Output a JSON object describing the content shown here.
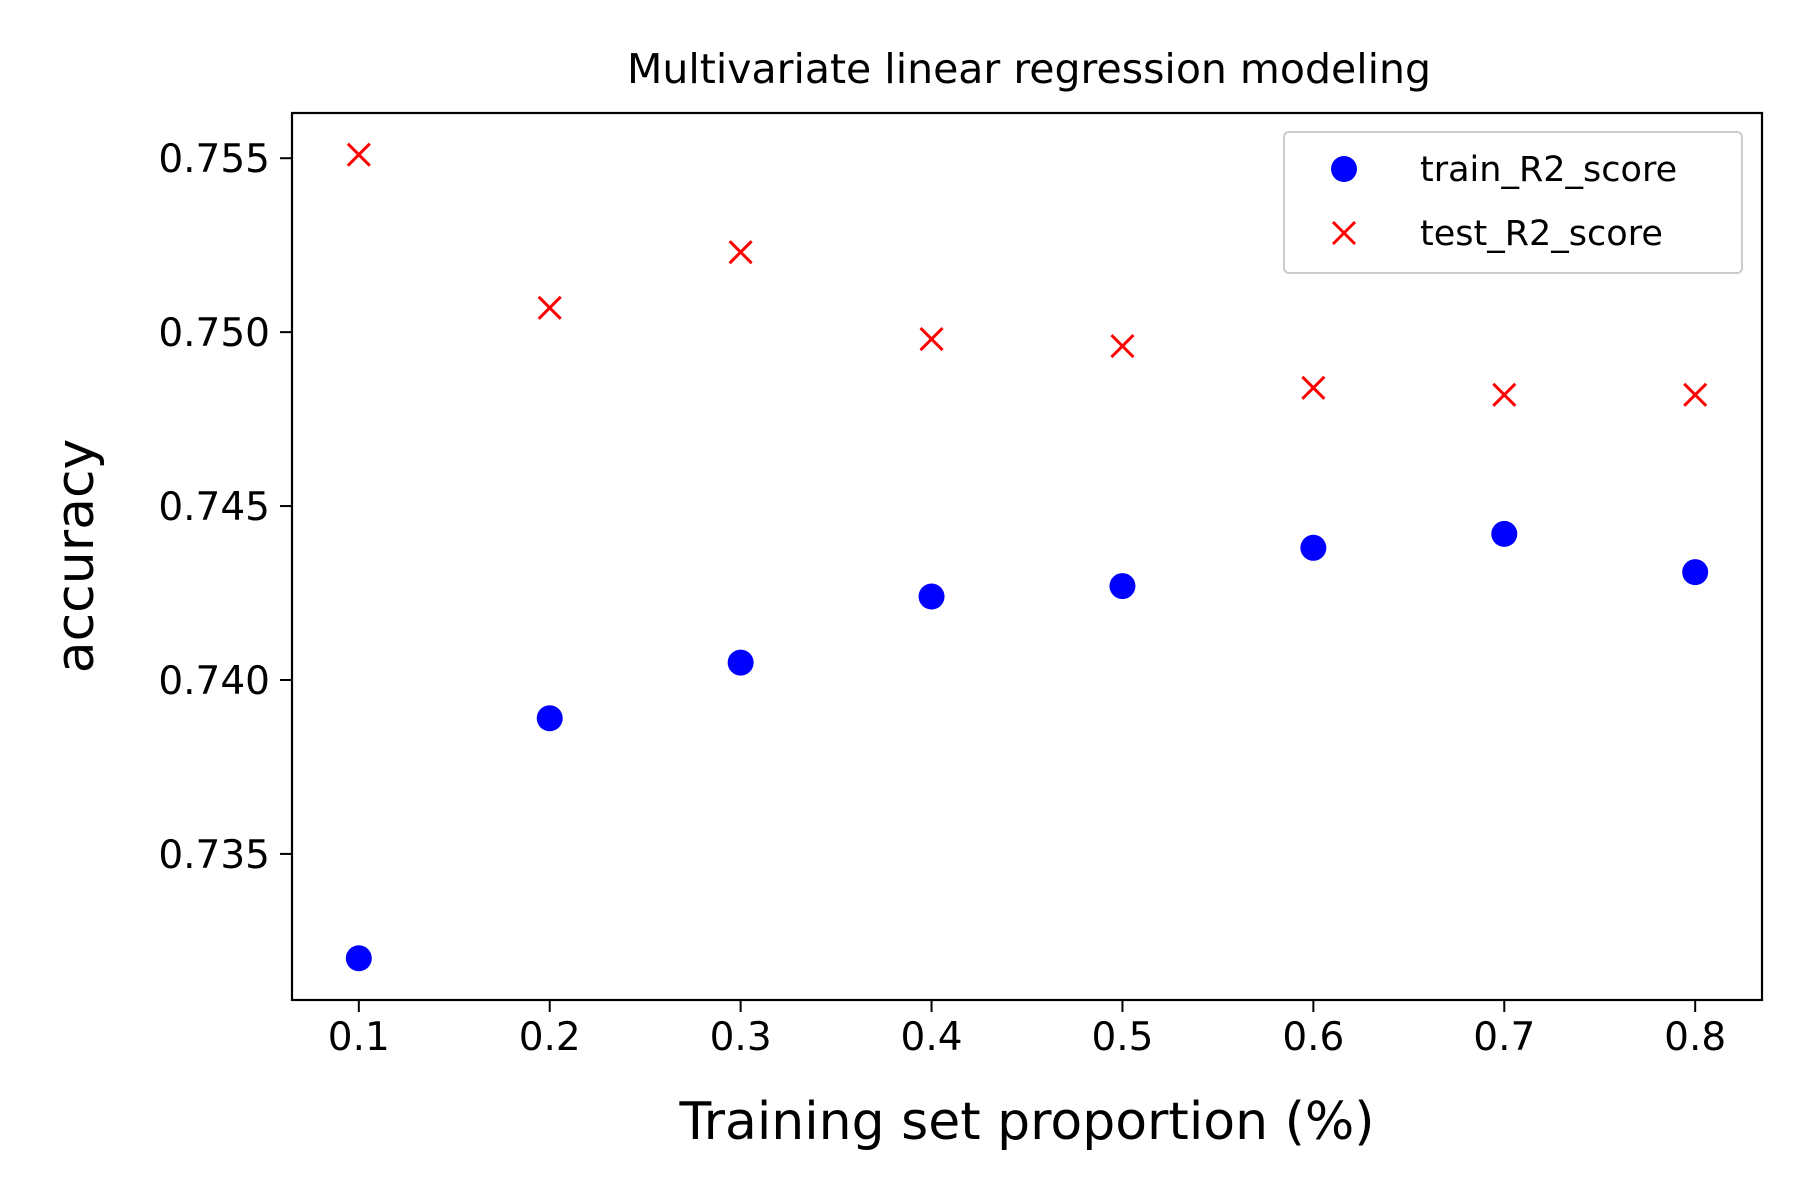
{
  "chart_data": {
    "type": "scatter",
    "title": "Multivariate linear regression modeling",
    "xlabel": "Training set proportion (%)",
    "ylabel": "accuracy",
    "x": [
      0.1,
      0.2,
      0.3,
      0.4,
      0.5,
      0.6,
      0.7,
      0.8
    ],
    "xlim": [
      0.065,
      0.835
    ],
    "ylim": [
      0.7308,
      0.7563
    ],
    "xticks": [
      0.1,
      0.2,
      0.3,
      0.4,
      0.5,
      0.6,
      0.7,
      0.8
    ],
    "xtick_labels": [
      "0.1",
      "0.2",
      "0.3",
      "0.4",
      "0.5",
      "0.6",
      "0.7",
      "0.8"
    ],
    "yticks": [
      0.735,
      0.74,
      0.745,
      0.75,
      0.755
    ],
    "ytick_labels": [
      "0.735",
      "0.740",
      "0.745",
      "0.750",
      "0.755"
    ],
    "grid": false,
    "legend_position": "top-right",
    "series": [
      {
        "name": "train_R2_score",
        "marker": "circle",
        "color": "#0000ff",
        "values": [
          0.732,
          0.7389,
          0.7405,
          0.7424,
          0.7427,
          0.7438,
          0.7442,
          0.7431
        ]
      },
      {
        "name": "test_R2_score",
        "marker": "x",
        "color": "#ff0000",
        "values": [
          0.7551,
          0.7507,
          0.7523,
          0.7498,
          0.7496,
          0.7484,
          0.7482,
          0.7482
        ]
      }
    ]
  }
}
